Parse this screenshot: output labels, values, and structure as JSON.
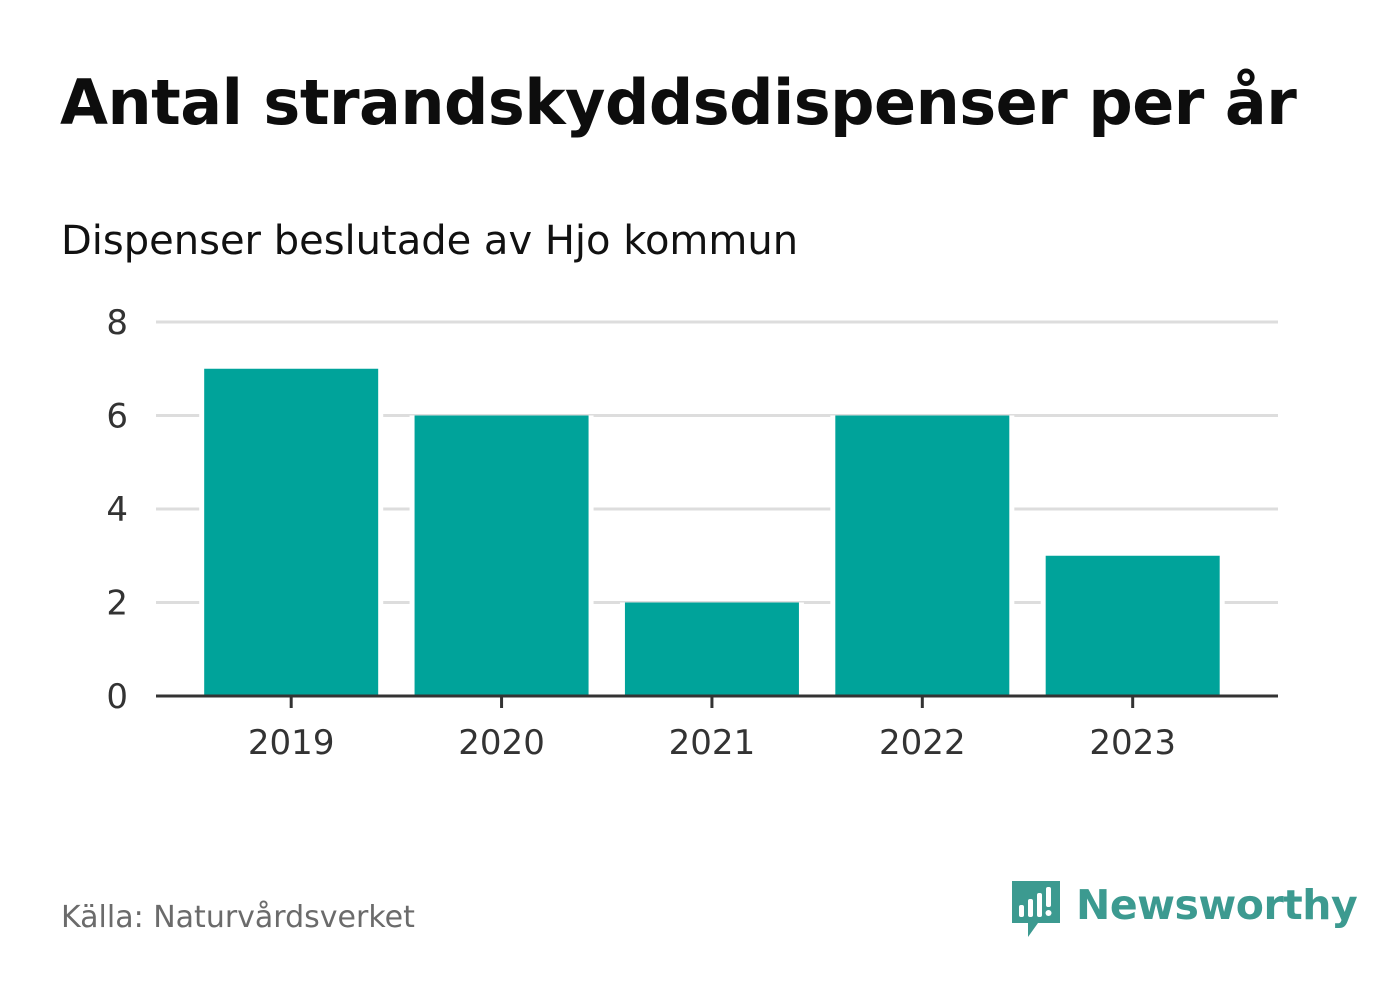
{
  "header": {
    "title": "Antal strandskyddsdispenser per år",
    "subtitle": "Dispenser beslutade av Hjo kommun"
  },
  "footer": {
    "source": "Källa: Naturvårdsverket",
    "brand": "Newsworthy"
  },
  "colors": {
    "bar": "#00a39a",
    "grid": "#dddddd",
    "axis": "#333333",
    "brand": "#3c9a90"
  },
  "chart_data": {
    "type": "bar",
    "title": "Antal strandskyddsdispenser per år",
    "subtitle": "Dispenser beslutade av Hjo kommun",
    "categories": [
      "2019",
      "2020",
      "2021",
      "2022",
      "2023"
    ],
    "values": [
      7,
      6,
      2,
      6,
      3
    ],
    "xlabel": "",
    "ylabel": "",
    "ylim": [
      0,
      8
    ],
    "yticks": [
      0,
      2,
      4,
      6,
      8
    ],
    "ytick_labels": [
      "0",
      "2",
      "4",
      "6",
      "8"
    ],
    "grid": true,
    "legend": "none"
  }
}
